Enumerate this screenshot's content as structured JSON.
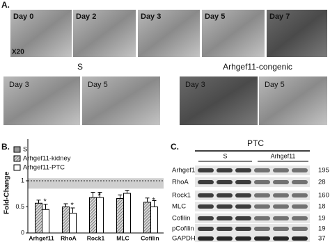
{
  "panel_a": {
    "label": "A.",
    "magnification": "X20",
    "top_row": [
      "Day 0",
      "Day 2",
      "Day 3",
      "Day 5",
      "Day 7"
    ],
    "groups": [
      {
        "name": "S",
        "images": [
          "Day 3",
          "Day 5"
        ]
      },
      {
        "name": "Arhgef11-congenic",
        "images": [
          "Day 3",
          "Day 5"
        ]
      }
    ]
  },
  "chart_data": {
    "type": "bar",
    "label": "B.",
    "y_label": "Fold-Change",
    "categories": [
      "Arhgef11",
      "RhoA",
      "Rock1",
      "MLC",
      "Cofilin"
    ],
    "reference": {
      "name": "S",
      "value": 1,
      "band": [
        0.85,
        1.05
      ]
    },
    "series": [
      {
        "name": "Arhgef11-kidney",
        "color": "#9a9a9a",
        "hatch": true,
        "values": [
          0.57,
          0.5,
          0.68,
          0.66,
          0.59
        ],
        "errors": [
          0.06,
          0.06,
          0.1,
          0.07,
          0.08
        ],
        "value_labels": [
          "*",
          "*",
          "*",
          "*",
          "*"
        ]
      },
      {
        "name": "Arhgef11-PTC",
        "color": "#ffffff",
        "hatch": false,
        "values": [
          0.45,
          0.38,
          0.68,
          0.76,
          0.5
        ],
        "errors": [
          0.1,
          0.1,
          0.1,
          0.06,
          0.12
        ]
      }
    ],
    "ylim": [
      0,
      1.8
    ],
    "yticks": [
      0,
      0.5,
      1
    ]
  },
  "panel_c": {
    "label": "C.",
    "title": "PTC",
    "groups": [
      "S",
      "Arhgef11"
    ],
    "rows": [
      {
        "name": "Arhgef11",
        "kda": "195"
      },
      {
        "name": "RhoA",
        "kda": "28"
      },
      {
        "name": "Rock1",
        "kda": "160"
      },
      {
        "name": "MLC",
        "kda": "18"
      },
      {
        "name": "Cofilin",
        "kda": "19"
      },
      {
        "name": "pCofilin",
        "kda": "19"
      },
      {
        "name": "GAPDH",
        "kda": "37"
      }
    ]
  }
}
